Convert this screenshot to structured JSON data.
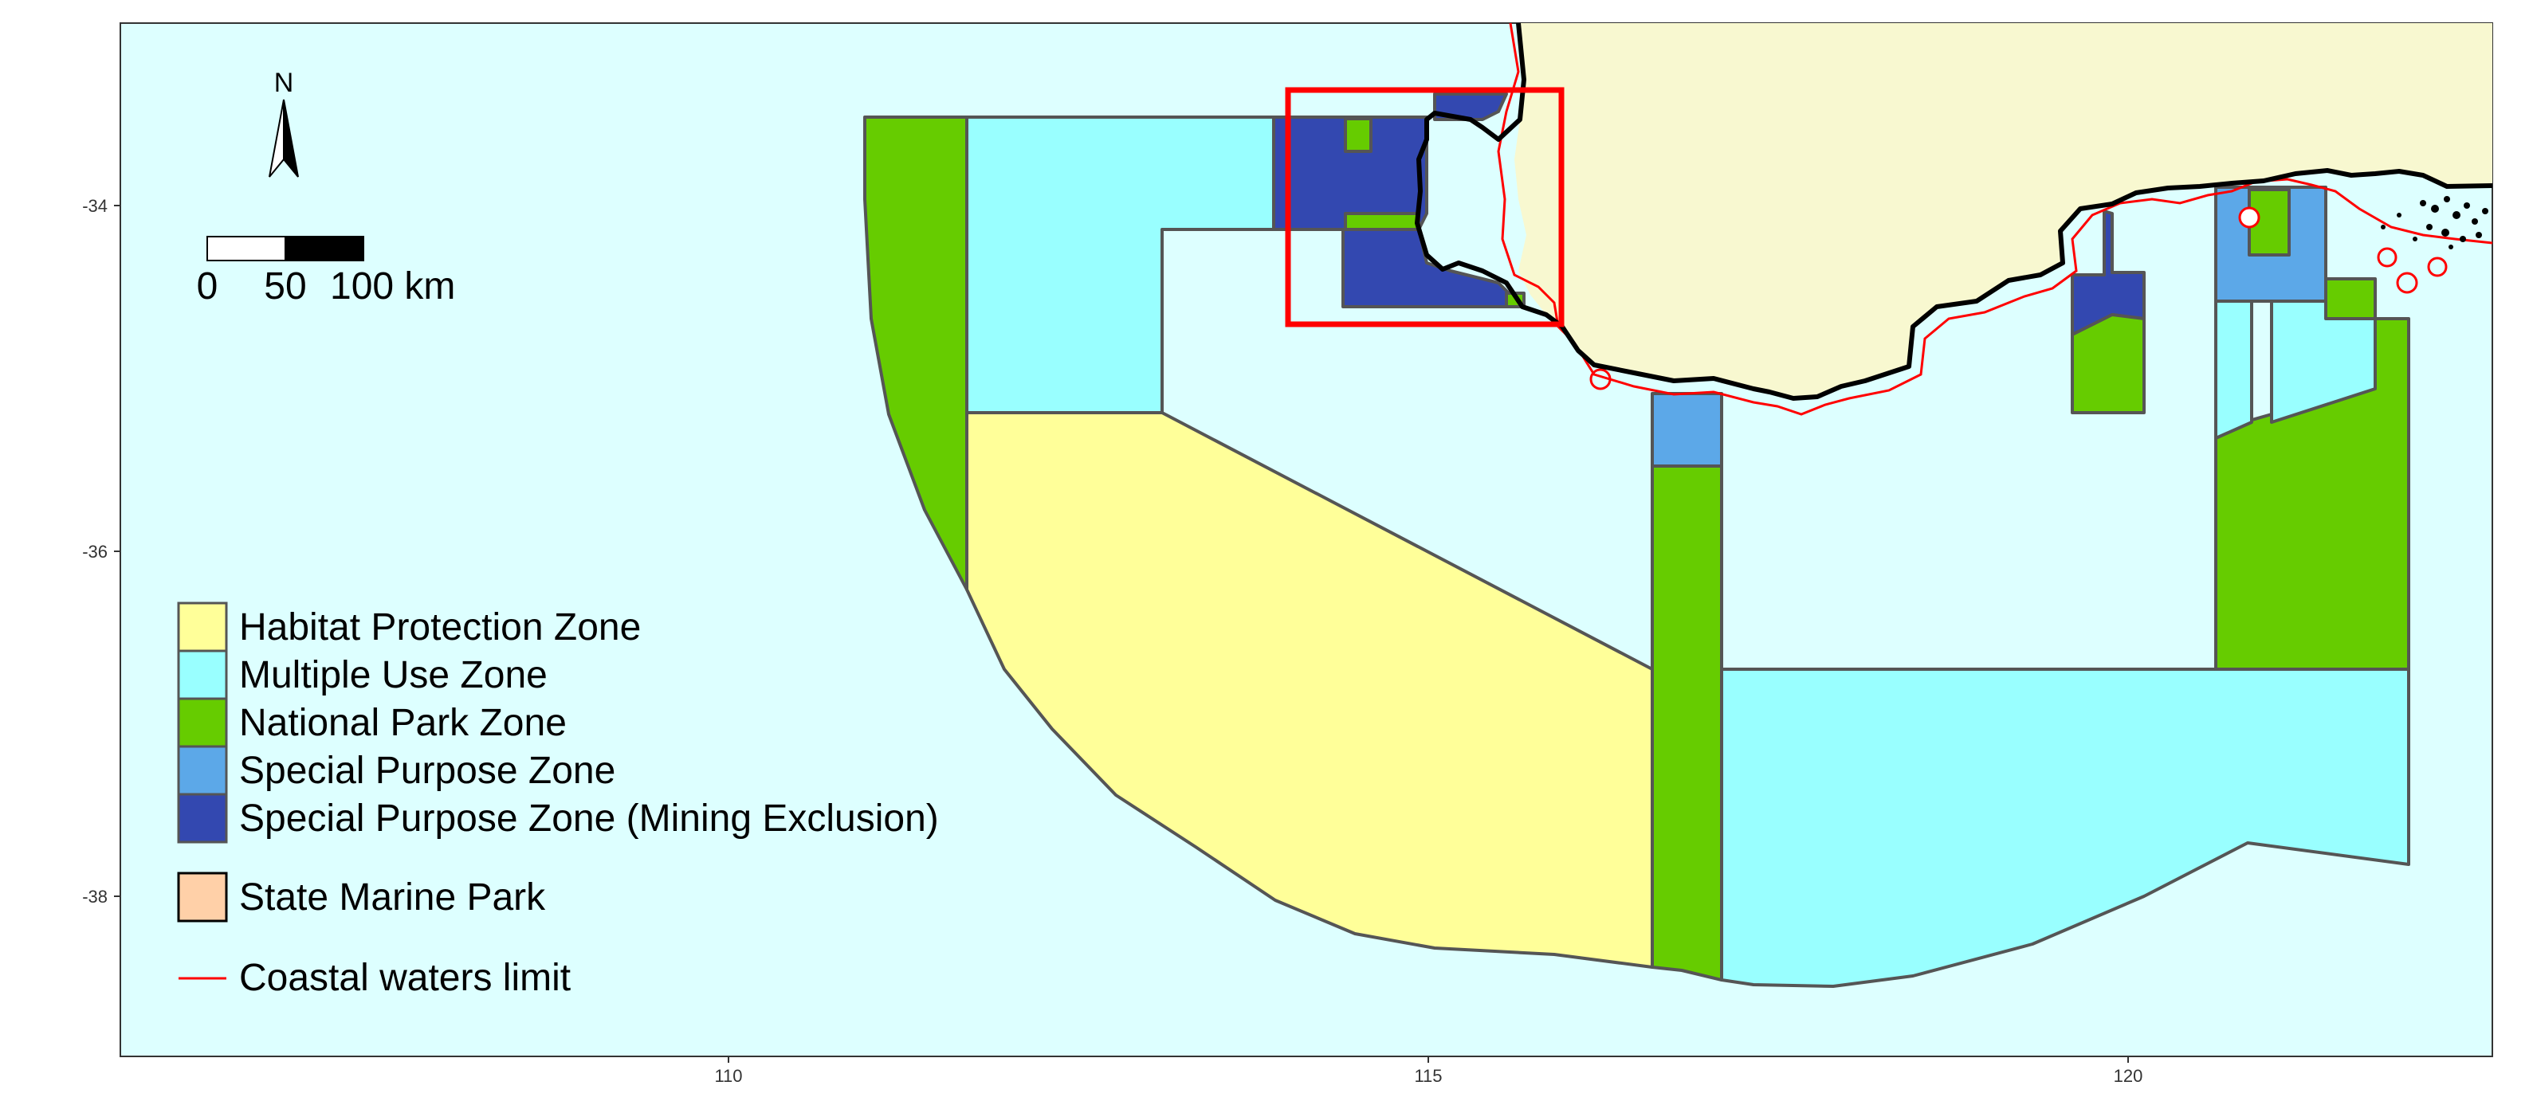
{
  "map": {
    "x_ticks": [
      "110",
      "115",
      "120"
    ],
    "y_ticks": [
      "-34",
      "-36",
      "-38"
    ]
  },
  "north_arrow": {
    "label": "N"
  },
  "scale_bar": {
    "labels": [
      "0",
      "50",
      "100 km"
    ]
  },
  "legend": {
    "zones": [
      {
        "label": "Habitat Protection Zone",
        "color": "#FFFF99"
      },
      {
        "label": "Multiple Use Zone",
        "color": "#99FFFF"
      },
      {
        "label": "National Park Zone",
        "color": "#66CC00"
      },
      {
        "label": "Special Purpose Zone",
        "color": "#5CA8E8"
      },
      {
        "label": "Special Purpose Zone (Mining Exclusion)",
        "color": "#3348B0"
      }
    ],
    "state_marine_park": {
      "label": "State Marine Park",
      "color": "#FFD0A8"
    },
    "coastal_waters_limit": {
      "label": "Coastal waters limit",
      "color": "#FF0000"
    }
  },
  "colors": {
    "ocean": "#DDFFFF",
    "land": "#F8F8D0",
    "coastline": "#000000",
    "inset_box": "#FF0000"
  }
}
